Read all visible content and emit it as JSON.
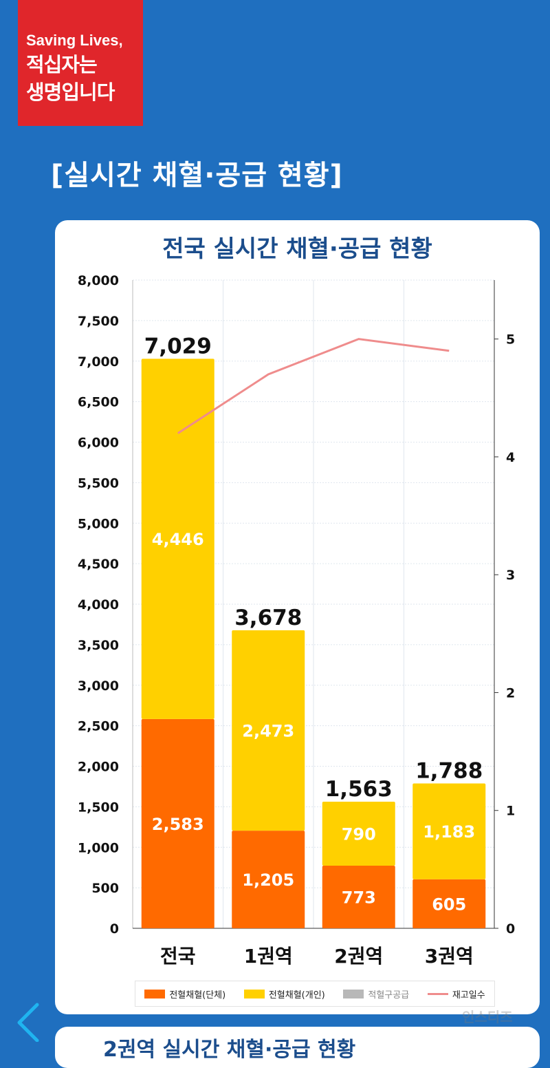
{
  "badge": {
    "line1": "Saving Lives,",
    "line2": "적십자는",
    "line3": "생명입니다"
  },
  "section_title": "[실시간 채혈·공급 현황]",
  "chart_title": "전국 실시간 채혈·공급 현황",
  "card2_title": "2권역 실시간 채혈·공급 현황",
  "watermark": "인스티즈",
  "colors": {
    "group": "#ff6a00",
    "individual": "#ffd000",
    "supply": "#b8b8b8",
    "stock_line": "#ef8c8c",
    "title": "#1b4d8c",
    "background": "#1f6fbf",
    "badge": "#e0262b"
  },
  "chart_data": {
    "type": "bar",
    "stacked": true,
    "categories": [
      "전국",
      "1권역",
      "2권역",
      "3권역"
    ],
    "series": [
      {
        "name": "전혈채혈(단체)",
        "values": [
          2583,
          1205,
          773,
          605
        ]
      },
      {
        "name": "전혈채혈(개인)",
        "values": [
          4446,
          2473,
          790,
          1183
        ]
      },
      {
        "name": "적혈구공급",
        "values": [
          0,
          0,
          0,
          0
        ]
      }
    ],
    "line_series": {
      "name": "재고일수",
      "axis": "right",
      "values": [
        4.2,
        4.7,
        5.0,
        4.9
      ]
    },
    "totals": [
      "7,029",
      "3,678",
      "1,563",
      "1,788"
    ],
    "value_labels": {
      "group": [
        "2,583",
        "1,205",
        "773",
        "605"
      ],
      "individual": [
        "4,446",
        "2,473",
        "790",
        "1,183"
      ]
    },
    "ylim": [
      0,
      8000
    ],
    "y2lim": [
      0,
      5.5
    ],
    "yticks": [
      "0",
      "500",
      "1,000",
      "1,500",
      "2,000",
      "2,500",
      "3,000",
      "3,500",
      "4,000",
      "4,500",
      "5,000",
      "5,500",
      "6,000",
      "6,500",
      "7,000",
      "7,500",
      "8,000"
    ],
    "y2ticks": [
      "0",
      "1",
      "2",
      "3",
      "4",
      "5"
    ],
    "grid": true,
    "legend": "bottom"
  }
}
